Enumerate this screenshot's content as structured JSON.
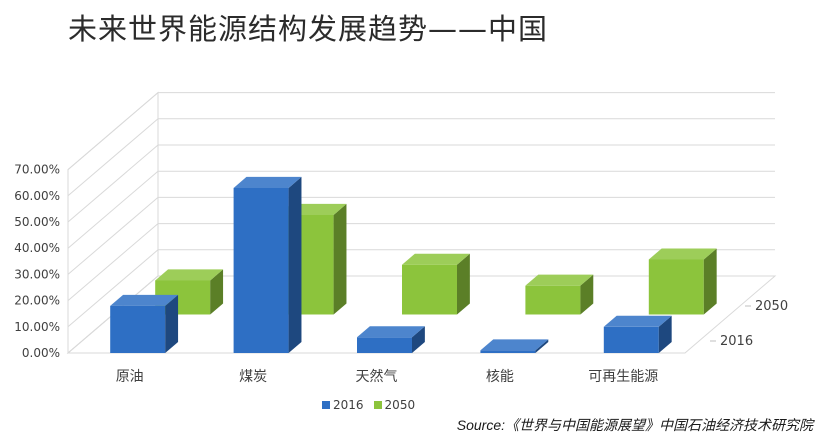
{
  "chart_data": {
    "type": "bar",
    "title": "未来世界能源结构发展趋势——中国",
    "categories": [
      "原油",
      "煤炭",
      "天然气",
      "核能",
      "可再生能源"
    ],
    "series": [
      {
        "name": "2016",
        "values": [
          18,
          63,
          6,
          1,
          10
        ],
        "color": "#2e6fc4"
      },
      {
        "name": "2050",
        "values": [
          13,
          38,
          19,
          11,
          21
        ],
        "color": "#8cc43c"
      }
    ],
    "ylim": [
      0,
      70
    ],
    "yticks": [
      "0.00%",
      "10.00%",
      "20.00%",
      "30.00%",
      "40.00%",
      "50.00%",
      "60.00%",
      "70.00%"
    ],
    "depth_labels": [
      "2050",
      "2016"
    ],
    "three_d": true,
    "grid": true,
    "legend_position": "bottom"
  },
  "source_text": "Source:《世界与中国能源展望》中国石油经济技术研究院"
}
